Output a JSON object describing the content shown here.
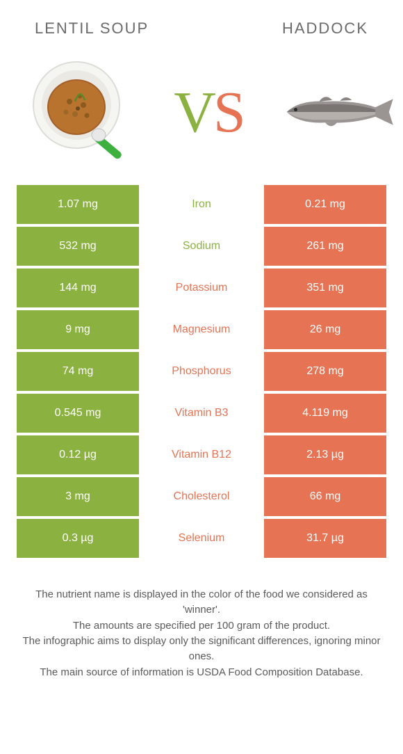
{
  "colors": {
    "left": "#8bb140",
    "right": "#e57354",
    "title": "#6a6a6a",
    "footer": "#5a5a5a",
    "white": "#ffffff"
  },
  "food_left": {
    "title": "LENTIL SOUP"
  },
  "food_right": {
    "title": "HADDOCK"
  },
  "vs": {
    "v": "V",
    "s": "S"
  },
  "rows": [
    {
      "left": "1.07 mg",
      "label": "Iron",
      "right": "0.21 mg",
      "winner": "left"
    },
    {
      "left": "532 mg",
      "label": "Sodium",
      "right": "261 mg",
      "winner": "left"
    },
    {
      "left": "144 mg",
      "label": "Potassium",
      "right": "351 mg",
      "winner": "right"
    },
    {
      "left": "9 mg",
      "label": "Magnesium",
      "right": "26 mg",
      "winner": "right"
    },
    {
      "left": "74 mg",
      "label": "Phosphorus",
      "right": "278 mg",
      "winner": "right"
    },
    {
      "left": "0.545 mg",
      "label": "Vitamin B3",
      "right": "4.119 mg",
      "winner": "right"
    },
    {
      "left": "0.12 µg",
      "label": "Vitamin B12",
      "right": "2.13 µg",
      "winner": "right"
    },
    {
      "left": "3 mg",
      "label": "Cholesterol",
      "right": "66 mg",
      "winner": "right"
    },
    {
      "left": "0.3 µg",
      "label": "Selenium",
      "right": "31.7 µg",
      "winner": "right"
    }
  ],
  "footer": {
    "line1": "The nutrient name is displayed in the color of the food we considered as 'winner'.",
    "line2": "The amounts are specified per 100 gram of the product.",
    "line3": "The infographic aims to display only the significant differences, ignoring minor ones.",
    "line4": "The main source of information is USDA Food Composition Database."
  }
}
